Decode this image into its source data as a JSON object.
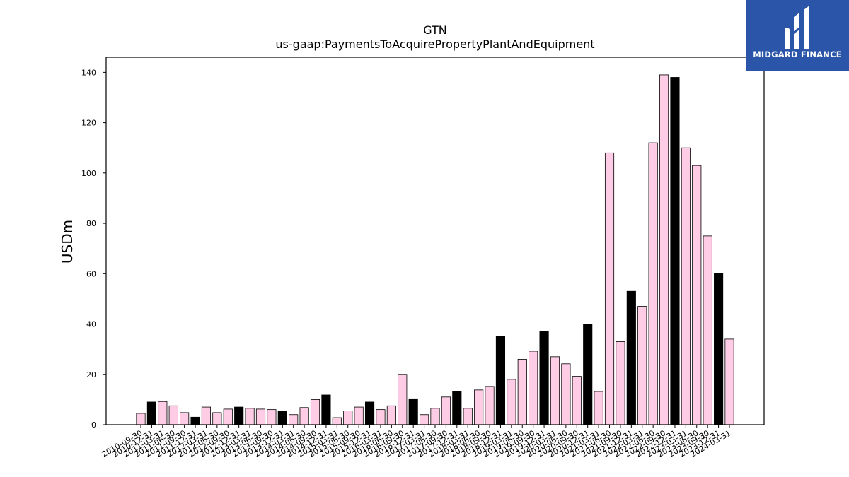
{
  "chart_data": {
    "type": "bar",
    "title": "GTN",
    "subtitle": "us-gaap:PaymentsToAcquirePropertyPlantAndEquipment",
    "xlabel": "",
    "ylabel": "USDm",
    "ylim": [
      0,
      146
    ],
    "yticks": [
      0,
      20,
      40,
      60,
      80,
      100,
      120,
      140
    ],
    "grid": false,
    "colors": {
      "regular": "#ffcce6",
      "year_end": "#000000",
      "edge": "#000000"
    },
    "categories": [
      "2010-09-30",
      "2010-12-31",
      "2011-03-31",
      "2011-06-30",
      "2011-09-30",
      "2011-12-31",
      "2012-03-31",
      "2012-06-30",
      "2012-09-30",
      "2012-12-31",
      "2013-03-31",
      "2013-06-30",
      "2013-09-30",
      "2013-12-31",
      "2014-03-31",
      "2014-06-30",
      "2014-09-30",
      "2014-12-31",
      "2015-03-31",
      "2015-06-30",
      "2015-09-30",
      "2015-12-31",
      "2016-03-31",
      "2016-06-30",
      "2016-09-30",
      "2016-12-31",
      "2017-03-31",
      "2017-06-30",
      "2017-09-30",
      "2017-12-31",
      "2018-03-31",
      "2018-06-30",
      "2018-09-30",
      "2018-12-31",
      "2019-03-31",
      "2019-06-30",
      "2019-09-30",
      "2019-12-31",
      "2020-03-31",
      "2020-06-30",
      "2020-09-30",
      "2020-12-31",
      "2021-03-31",
      "2021-06-30",
      "2021-09-30",
      "2021-12-31",
      "2022-03-31",
      "2022-06-30",
      "2022-09-30",
      "2022-12-31",
      "2023-03-31",
      "2023-06-30",
      "2023-09-30",
      "2023-12-31",
      "2024-03-31"
    ],
    "values": [
      4.5,
      9,
      9.2,
      7.5,
      4.8,
      3,
      7,
      4.8,
      6.2,
      7,
      6.5,
      6.2,
      6,
      5.5,
      4,
      6.8,
      10,
      11.8,
      2.8,
      5.5,
      7,
      9,
      6,
      7.5,
      20,
      10.3,
      4,
      6.5,
      11,
      13.2,
      6.5,
      13.8,
      15.2,
      35,
      18,
      26,
      29.2,
      37,
      27,
      24.2,
      19.2,
      40,
      13.2,
      108,
      33,
      53,
      47,
      112,
      139,
      138,
      110,
      103,
      75,
      60,
      34
    ],
    "year_end": [
      false,
      true,
      false,
      false,
      false,
      true,
      false,
      false,
      false,
      true,
      false,
      false,
      false,
      true,
      false,
      false,
      false,
      true,
      false,
      false,
      false,
      true,
      false,
      false,
      false,
      true,
      false,
      false,
      false,
      true,
      false,
      false,
      false,
      true,
      false,
      false,
      false,
      true,
      false,
      false,
      false,
      true,
      false,
      false,
      false,
      true,
      false,
      false,
      false,
      true,
      false,
      false,
      false,
      true,
      false
    ]
  },
  "logo": {
    "text": "MIDGARD FINANCE",
    "icon": "midgard-m-logo-icon"
  }
}
